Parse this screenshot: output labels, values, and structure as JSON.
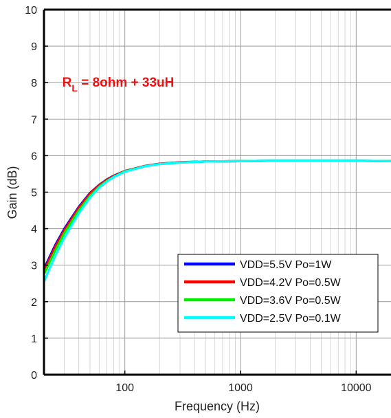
{
  "chart_data": {
    "type": "line",
    "title": "",
    "xlabel": "Frequency (Hz)",
    "ylabel": "Gain (dB)",
    "x_scale": "log",
    "xlim": [
      20,
      20000
    ],
    "ylim": [
      0,
      10
    ],
    "x_ticks": [
      100,
      1000,
      10000
    ],
    "x_tick_labels": [
      "100",
      "1000",
      "10000"
    ],
    "y_ticks": [
      0,
      1,
      2,
      3,
      4,
      5,
      6,
      7,
      8,
      9,
      10
    ],
    "y_tick_labels": [
      "0",
      "1",
      "2",
      "3",
      "4",
      "5",
      "6",
      "7",
      "8",
      "9",
      "10"
    ],
    "grid": true,
    "legend_position": "bottom-right",
    "annotation": {
      "main": "R",
      "sub": "L",
      "rest": " = 8ohm + 33uH",
      "x": 30,
      "y": 8
    },
    "x": [
      20,
      25,
      30,
      40,
      50,
      60,
      70,
      80,
      100,
      150,
      200,
      300,
      500,
      1000,
      2000,
      5000,
      10000,
      20000
    ],
    "series": [
      {
        "name": "VDD=5.5V Po=1W",
        "color": "#0000ff",
        "values": [
          2.9,
          3.55,
          4.0,
          4.6,
          4.98,
          5.2,
          5.35,
          5.45,
          5.58,
          5.72,
          5.78,
          5.82,
          5.84,
          5.85,
          5.86,
          5.86,
          5.86,
          5.85
        ]
      },
      {
        "name": "VDD=4.2V Po=0.5W",
        "color": "#ff0000",
        "values": [
          2.85,
          3.5,
          3.96,
          4.57,
          4.96,
          5.19,
          5.34,
          5.44,
          5.58,
          5.72,
          5.78,
          5.82,
          5.84,
          5.85,
          5.86,
          5.86,
          5.86,
          5.85
        ]
      },
      {
        "name": "VDD=3.6V Po=0.5W",
        "color": "#00ee00",
        "values": [
          2.75,
          3.4,
          3.88,
          4.5,
          4.9,
          5.15,
          5.31,
          5.42,
          5.57,
          5.71,
          5.77,
          5.81,
          5.84,
          5.85,
          5.86,
          5.86,
          5.86,
          5.85
        ]
      },
      {
        "name": "VDD=2.5V Po=0.1W",
        "color": "#00ffff",
        "values": [
          2.55,
          3.25,
          3.75,
          4.42,
          4.85,
          5.12,
          5.29,
          5.41,
          5.56,
          5.71,
          5.77,
          5.81,
          5.84,
          5.85,
          5.86,
          5.86,
          5.86,
          5.85
        ]
      }
    ]
  }
}
